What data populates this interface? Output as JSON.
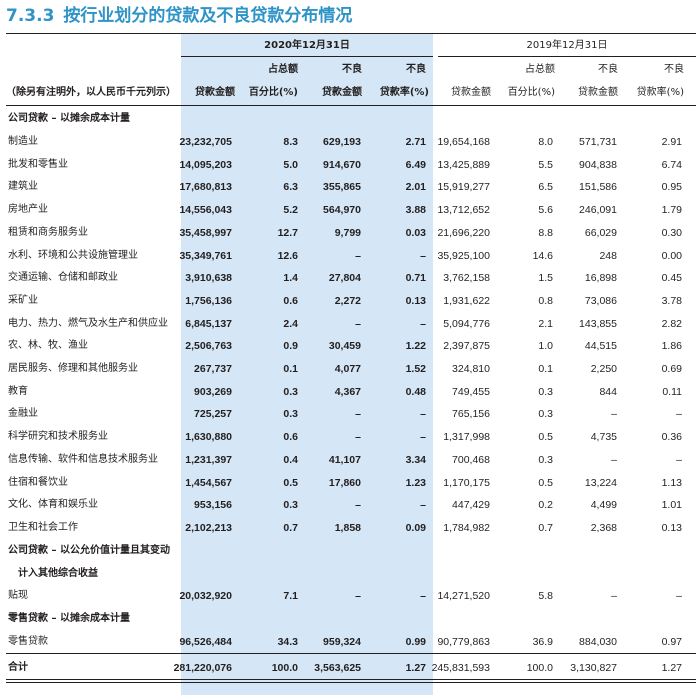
{
  "title": {
    "number": "7.3.3",
    "text": "按行业划分的贷款及不良贷款分布情况"
  },
  "header": {
    "period_2020": "2020年12月31日",
    "period_2019": "2019年12月31日",
    "unit_note": "（除另有注明外，以人民币千元列示）",
    "cols_top": [
      "",
      "占总额",
      "不良",
      "不良"
    ],
    "cols_bottom": [
      "贷款金额",
      "百分比(%)",
      "贷款金额",
      "贷款率(%)"
    ]
  },
  "sections": {
    "corp_amortized": "公司贷款 – 以摊余成本计量",
    "corp_fvoci_line1": "公司贷款 – 以公允价值计量且其变动",
    "corp_fvoci_line2": "计入其他综合收益",
    "retail": "零售贷款 – 以摊余成本计量"
  },
  "rows": [
    {
      "label": "制造业",
      "a20": "23,232,705",
      "p20": "8.3",
      "n20": "629,193",
      "r20": "2.71",
      "a19": "19,654,168",
      "p19": "8.0",
      "n19": "571,731",
      "r19": "2.91"
    },
    {
      "label": "批发和零售业",
      "a20": "14,095,203",
      "p20": "5.0",
      "n20": "914,670",
      "r20": "6.49",
      "a19": "13,425,889",
      "p19": "5.5",
      "n19": "904,838",
      "r19": "6.74"
    },
    {
      "label": "建筑业",
      "a20": "17,680,813",
      "p20": "6.3",
      "n20": "355,865",
      "r20": "2.01",
      "a19": "15,919,277",
      "p19": "6.5",
      "n19": "151,586",
      "r19": "0.95"
    },
    {
      "label": "房地产业",
      "a20": "14,556,043",
      "p20": "5.2",
      "n20": "564,970",
      "r20": "3.88",
      "a19": "13,712,652",
      "p19": "5.6",
      "n19": "246,091",
      "r19": "1.79"
    },
    {
      "label": "租赁和商务服务业",
      "a20": "35,458,997",
      "p20": "12.7",
      "n20": "9,799",
      "r20": "0.03",
      "a19": "21,696,220",
      "p19": "8.8",
      "n19": "66,029",
      "r19": "0.30"
    },
    {
      "label": "水利、环境和公共设施管理业",
      "a20": "35,349,761",
      "p20": "12.6",
      "n20": "–",
      "r20": "–",
      "a19": "35,925,100",
      "p19": "14.6",
      "n19": "248",
      "r19": "0.00"
    },
    {
      "label": "交通运输、仓储和邮政业",
      "a20": "3,910,638",
      "p20": "1.4",
      "n20": "27,804",
      "r20": "0.71",
      "a19": "3,762,158",
      "p19": "1.5",
      "n19": "16,898",
      "r19": "0.45"
    },
    {
      "label": "采矿业",
      "a20": "1,756,136",
      "p20": "0.6",
      "n20": "2,272",
      "r20": "0.13",
      "a19": "1,931,622",
      "p19": "0.8",
      "n19": "73,086",
      "r19": "3.78"
    },
    {
      "label": "电力、热力、燃气及水生产和供应业",
      "a20": "6,845,137",
      "p20": "2.4",
      "n20": "–",
      "r20": "–",
      "a19": "5,094,776",
      "p19": "2.1",
      "n19": "143,855",
      "r19": "2.82"
    },
    {
      "label": "农、林、牧、渔业",
      "a20": "2,506,763",
      "p20": "0.9",
      "n20": "30,459",
      "r20": "1.22",
      "a19": "2,397,875",
      "p19": "1.0",
      "n19": "44,515",
      "r19": "1.86"
    },
    {
      "label": "居民服务、修理和其他服务业",
      "a20": "267,737",
      "p20": "0.1",
      "n20": "4,077",
      "r20": "1.52",
      "a19": "324,810",
      "p19": "0.1",
      "n19": "2,250",
      "r19": "0.69"
    },
    {
      "label": "教育",
      "a20": "903,269",
      "p20": "0.3",
      "n20": "4,367",
      "r20": "0.48",
      "a19": "749,455",
      "p19": "0.3",
      "n19": "844",
      "r19": "0.11"
    },
    {
      "label": "金融业",
      "a20": "725,257",
      "p20": "0.3",
      "n20": "–",
      "r20": "–",
      "a19": "765,156",
      "p19": "0.3",
      "n19": "–",
      "r19": "–"
    },
    {
      "label": "科学研究和技术服务业",
      "a20": "1,630,880",
      "p20": "0.6",
      "n20": "–",
      "r20": "–",
      "a19": "1,317,998",
      "p19": "0.5",
      "n19": "4,735",
      "r19": "0.36"
    },
    {
      "label": "信息传输、软件和信息技术服务业",
      "a20": "1,231,397",
      "p20": "0.4",
      "n20": "41,107",
      "r20": "3.34",
      "a19": "700,468",
      "p19": "0.3",
      "n19": "–",
      "r19": "–"
    },
    {
      "label": "住宿和餐饮业",
      "a20": "1,454,567",
      "p20": "0.5",
      "n20": "17,860",
      "r20": "1.23",
      "a19": "1,170,175",
      "p19": "0.5",
      "n19": "13,224",
      "r19": "1.13"
    },
    {
      "label": "文化、体育和娱乐业",
      "a20": "953,156",
      "p20": "0.3",
      "n20": "–",
      "r20": "–",
      "a19": "447,429",
      "p19": "0.2",
      "n19": "4,499",
      "r19": "1.01"
    },
    {
      "label": "卫生和社会工作",
      "a20": "2,102,213",
      "p20": "0.7",
      "n20": "1,858",
      "r20": "0.09",
      "a19": "1,784,982",
      "p19": "0.7",
      "n19": "2,368",
      "r19": "0.13"
    }
  ],
  "discount_row": {
    "label": "贴现",
    "a20": "20,032,920",
    "p20": "7.1",
    "n20": "–",
    "r20": "–",
    "a19": "14,271,520",
    "p19": "5.8",
    "n19": "–",
    "r19": "–"
  },
  "retail_row": {
    "label": "零售贷款",
    "a20": "96,526,484",
    "p20": "34.3",
    "n20": "959,324",
    "r20": "0.99",
    "a19": "90,779,863",
    "p19": "36.9",
    "n19": "884,030",
    "r19": "0.97"
  },
  "total_row": {
    "label": "合计",
    "a20": "281,220,076",
    "p20": "100.0",
    "n20": "3,563,625",
    "r20": "1.27",
    "a19": "245,831,593",
    "p19": "100.0",
    "n19": "3,130,827",
    "r19": "1.27"
  }
}
